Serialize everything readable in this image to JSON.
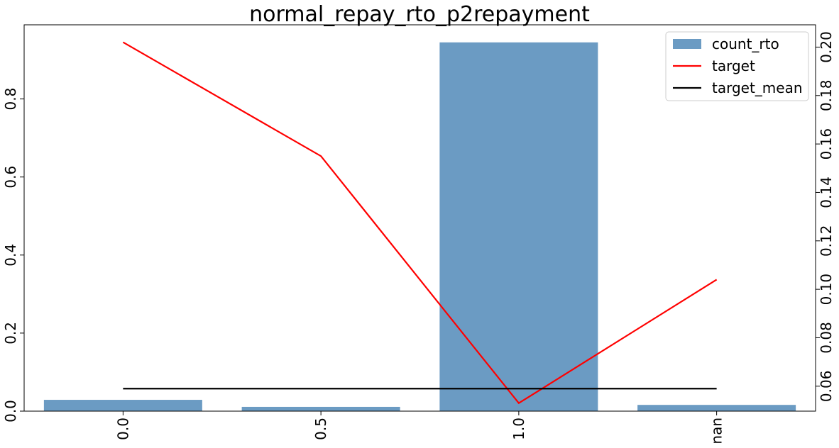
{
  "chart_data": {
    "type": "bar",
    "title": "normal_repay_rto_p2repayment",
    "categories": [
      "0.0",
      "0.5",
      "1.0",
      "nan"
    ],
    "series": [
      {
        "name": "count_rto",
        "kind": "bar",
        "axis": "left",
        "color": "#6b9bc3",
        "values": [
          0.029,
          0.011,
          0.945,
          0.016
        ]
      },
      {
        "name": "target",
        "kind": "line",
        "axis": "right",
        "color": "#ff0000",
        "values": [
          0.202,
          0.155,
          0.053,
          0.104
        ]
      },
      {
        "name": "target_mean",
        "kind": "line",
        "axis": "right",
        "color": "#000000",
        "values": [
          0.059,
          0.059,
          0.059,
          0.059
        ]
      }
    ],
    "y_left": {
      "lim": [
        0,
        0.99
      ],
      "ticks": [
        0.0,
        0.2,
        0.4,
        0.6,
        0.8
      ],
      "tick_labels": [
        "0.0",
        "0.2",
        "0.4",
        "0.6",
        "0.8"
      ]
    },
    "y_right": {
      "lim": [
        0.0497,
        0.2092
      ],
      "ticks": [
        0.06,
        0.08,
        0.1,
        0.12,
        0.14,
        0.16,
        0.18,
        0.2
      ],
      "tick_labels": [
        "0.06",
        "0.08",
        "0.10",
        "0.12",
        "0.14",
        "0.16",
        "0.18",
        "0.20"
      ]
    },
    "xlabel": "",
    "ylabel": "",
    "grid": false,
    "legend_position": "top-right"
  }
}
